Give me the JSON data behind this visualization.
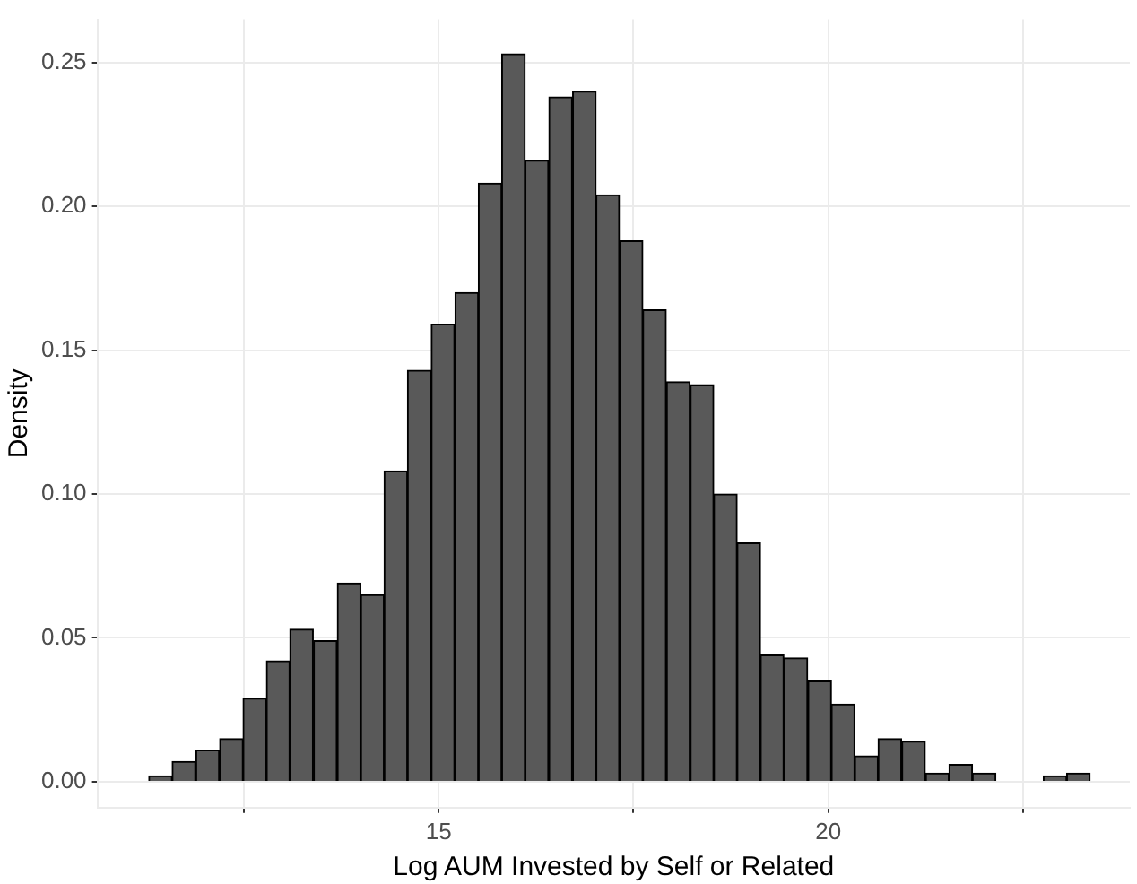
{
  "chart_data": {
    "type": "histogram",
    "xlabel": "Log AUM Invested by Self or Related",
    "ylabel": "Density",
    "bins": [
      11.28,
      11.58,
      11.88,
      12.19,
      12.49,
      12.79,
      13.09,
      13.39,
      13.7,
      14.0,
      14.3,
      14.6,
      14.9,
      15.21,
      15.51,
      15.81,
      16.11,
      16.41,
      16.72,
      17.02,
      17.32,
      17.62,
      17.92,
      18.23,
      18.53,
      18.83,
      19.13,
      19.43,
      19.74,
      20.04,
      20.34,
      20.64,
      20.94,
      21.25,
      21.55,
      21.85,
      22.15,
      22.45,
      22.76,
      23.06,
      23.36
    ],
    "values": [
      0.002,
      0.007,
      0.011,
      0.015,
      0.029,
      0.042,
      0.053,
      0.049,
      0.069,
      0.065,
      0.108,
      0.143,
      0.159,
      0.17,
      0.208,
      0.253,
      0.216,
      0.238,
      0.24,
      0.204,
      0.188,
      0.164,
      0.139,
      0.138,
      0.1,
      0.083,
      0.044,
      0.043,
      0.035,
      0.027,
      0.009,
      0.015,
      0.014,
      0.003,
      0.006,
      0.003,
      0,
      0,
      0.002,
      0.003
    ],
    "color": "#595959",
    "xlim": [
      10.62,
      23.87
    ],
    "ylim": [
      -0.009,
      0.265
    ],
    "xticks": [
      {
        "value": 12.5,
        "label": null
      },
      15,
      {
        "value": 17.5,
        "label": null
      },
      20,
      {
        "value": 22.5,
        "label": null
      }
    ],
    "yticks": [
      {
        "value": 0,
        "label": "0.00"
      },
      {
        "value": 0.05,
        "label": "0.05"
      },
      {
        "value": 0.1,
        "label": "0.10"
      },
      {
        "value": 0.15,
        "label": "0.15"
      },
      {
        "value": 0.2,
        "label": "0.20"
      },
      {
        "value": 0.25,
        "label": "0.25"
      }
    ],
    "grid": true
  }
}
